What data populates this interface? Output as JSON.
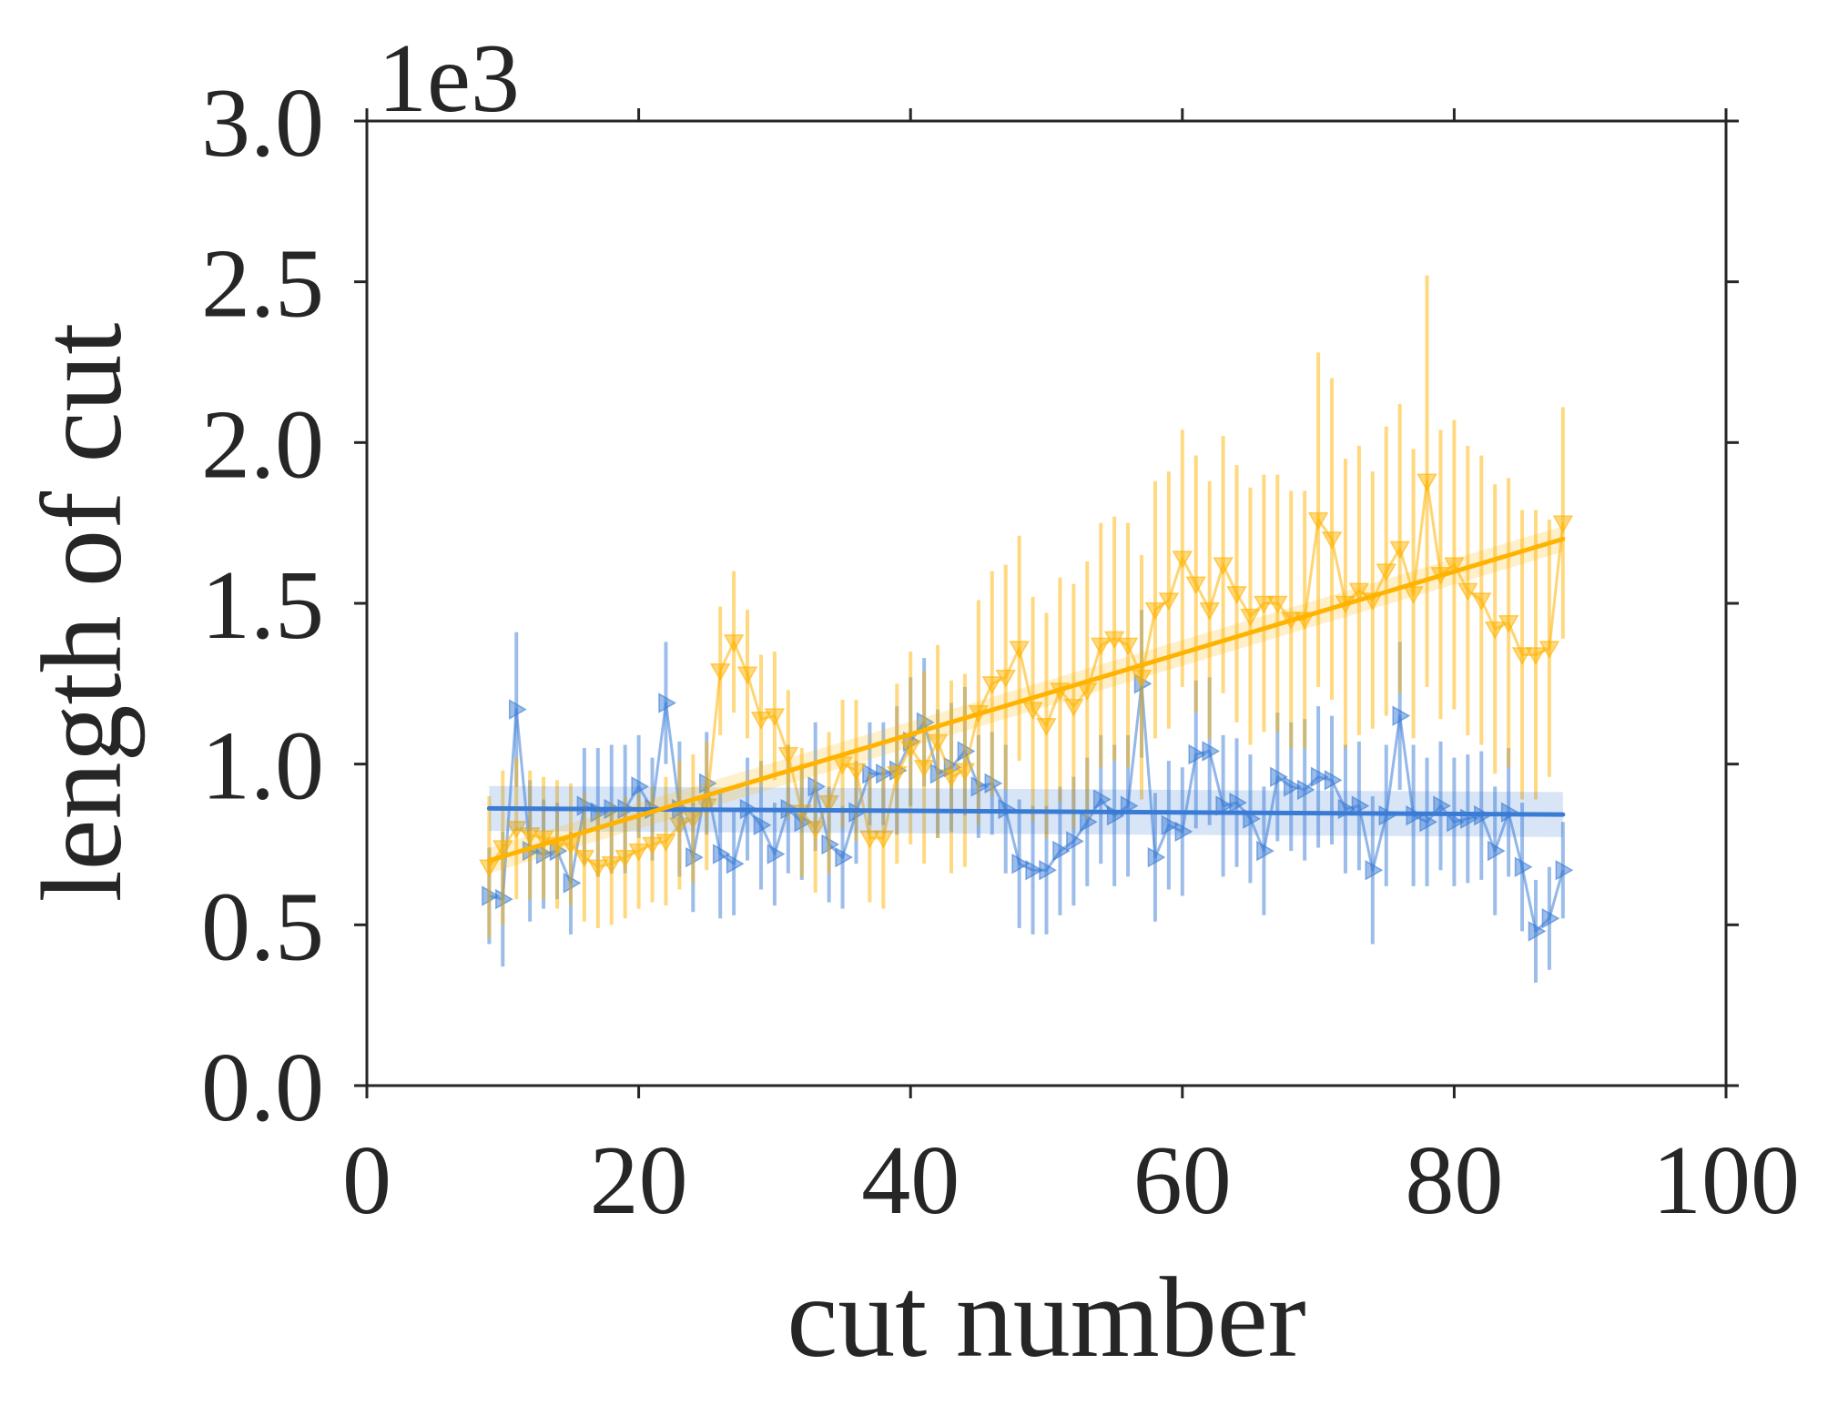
{
  "chart_data": {
    "type": "line",
    "title": "",
    "xlabel": "cut number",
    "ylabel": "length of cut",
    "y_multiplier_label": "1e3",
    "xlim": [
      0,
      100
    ],
    "ylim": [
      0,
      3.0
    ],
    "xticks": [
      0,
      20,
      40,
      60,
      80,
      100
    ],
    "xtick_labels": [
      "0",
      "20",
      "40",
      "60",
      "80",
      "100"
    ],
    "yticks": [
      0.0,
      0.5,
      1.0,
      1.5,
      2.0,
      2.5,
      3.0
    ],
    "ytick_labels": [
      "0.0",
      "0.5",
      "1.0",
      "1.5",
      "2.0",
      "2.5",
      "3.0"
    ],
    "grid": false,
    "legend": "none",
    "colors": {
      "series_a": "#3a7bd5",
      "series_b": "#ffb300",
      "axis": "#262626"
    },
    "series": [
      {
        "marker": "triangle-right",
        "color": "#3a7bd5",
        "x": [
          9,
          10,
          11,
          12,
          13,
          14,
          15,
          16,
          17,
          18,
          19,
          20,
          21,
          22,
          23,
          24,
          25,
          26,
          27,
          28,
          29,
          30,
          31,
          32,
          33,
          34,
          35,
          36,
          37,
          38,
          39,
          40,
          41,
          42,
          43,
          44,
          45,
          46,
          47,
          48,
          49,
          50,
          51,
          52,
          53,
          54,
          55,
          56,
          57,
          58,
          59,
          60,
          61,
          62,
          63,
          64,
          65,
          66,
          67,
          68,
          69,
          70,
          71,
          72,
          73,
          74,
          75,
          76,
          77,
          78,
          79,
          80,
          81,
          82,
          83,
          84,
          85,
          86,
          87,
          88
        ],
        "y": [
          0.59,
          0.58,
          1.17,
          0.73,
          0.72,
          0.73,
          0.63,
          0.87,
          0.85,
          0.86,
          0.86,
          0.93,
          0.86,
          1.19,
          0.86,
          0.71,
          0.94,
          0.72,
          0.69,
          0.86,
          0.81,
          0.72,
          0.86,
          0.82,
          0.93,
          0.75,
          0.71,
          0.85,
          0.97,
          0.97,
          0.98,
          1.07,
          1.13,
          0.97,
          0.99,
          1.04,
          0.93,
          0.94,
          0.86,
          0.69,
          0.67,
          0.67,
          0.73,
          0.76,
          0.82,
          0.89,
          0.84,
          0.87,
          1.25,
          0.71,
          0.81,
          0.79,
          1.03,
          1.04,
          0.87,
          0.88,
          0.83,
          0.73,
          0.96,
          0.93,
          0.92,
          0.96,
          0.95,
          0.86,
          0.87,
          0.67,
          0.84,
          1.15,
          0.84,
          0.82,
          0.87,
          0.82,
          0.83,
          0.84,
          0.73,
          0.85,
          0.68,
          0.48,
          0.52,
          0.67
        ],
        "err": [
          0.15,
          0.21,
          0.24,
          0.22,
          0.17,
          0.15,
          0.16,
          0.18,
          0.2,
          0.2,
          0.2,
          0.16,
          0.16,
          0.19,
          0.21,
          0.17,
          0.16,
          0.2,
          0.16,
          0.16,
          0.2,
          0.16,
          0.2,
          0.18,
          0.2,
          0.18,
          0.16,
          0.16,
          0.16,
          0.16,
          0.2,
          0.2,
          0.2,
          0.2,
          0.2,
          0.2,
          0.16,
          0.16,
          0.2,
          0.2,
          0.2,
          0.2,
          0.2,
          0.2,
          0.2,
          0.2,
          0.22,
          0.22,
          0.23,
          0.2,
          0.2,
          0.2,
          0.23,
          0.23,
          0.22,
          0.2,
          0.2,
          0.2,
          0.2,
          0.2,
          0.22,
          0.22,
          0.2,
          0.2,
          0.2,
          0.23,
          0.22,
          0.23,
          0.22,
          0.2,
          0.2,
          0.2,
          0.2,
          0.2,
          0.2,
          0.2,
          0.2,
          0.16,
          0.16,
          0.15
        ]
      },
      {
        "marker": "triangle-down",
        "color": "#ffb300",
        "x": [
          9,
          10,
          11,
          12,
          13,
          14,
          15,
          16,
          17,
          18,
          19,
          20,
          21,
          22,
          23,
          24,
          25,
          26,
          27,
          28,
          29,
          30,
          31,
          32,
          33,
          34,
          35,
          36,
          37,
          38,
          39,
          40,
          41,
          42,
          43,
          44,
          45,
          46,
          47,
          48,
          49,
          50,
          51,
          52,
          53,
          54,
          55,
          56,
          57,
          58,
          59,
          60,
          61,
          62,
          63,
          64,
          65,
          66,
          67,
          68,
          69,
          70,
          71,
          72,
          73,
          74,
          75,
          76,
          77,
          78,
          79,
          80,
          81,
          82,
          83,
          84,
          85,
          86,
          87,
          88
        ],
        "y": [
          0.68,
          0.74,
          0.8,
          0.78,
          0.77,
          0.75,
          0.75,
          0.71,
          0.68,
          0.69,
          0.71,
          0.73,
          0.75,
          0.76,
          0.81,
          0.83,
          0.87,
          1.29,
          1.38,
          1.28,
          1.14,
          1.15,
          1.03,
          0.85,
          0.8,
          0.88,
          1.0,
          0.98,
          0.77,
          0.77,
          0.97,
          1.05,
          0.99,
          1.07,
          0.96,
          0.98,
          1.16,
          1.25,
          1.27,
          1.36,
          1.17,
          1.12,
          1.23,
          1.18,
          1.23,
          1.37,
          1.39,
          1.37,
          1.27,
          1.48,
          1.51,
          1.64,
          1.56,
          1.48,
          1.62,
          1.53,
          1.46,
          1.5,
          1.5,
          1.45,
          1.45,
          1.76,
          1.7,
          1.5,
          1.54,
          1.51,
          1.6,
          1.67,
          1.53,
          1.88,
          1.59,
          1.62,
          1.54,
          1.51,
          1.42,
          1.44,
          1.34,
          1.34,
          1.36,
          1.75
        ],
        "err": [
          0.22,
          0.24,
          0.22,
          0.2,
          0.19,
          0.2,
          0.19,
          0.2,
          0.19,
          0.19,
          0.19,
          0.18,
          0.18,
          0.2,
          0.2,
          0.2,
          0.2,
          0.2,
          0.22,
          0.2,
          0.2,
          0.2,
          0.2,
          0.2,
          0.2,
          0.22,
          0.2,
          0.22,
          0.2,
          0.22,
          0.28,
          0.3,
          0.3,
          0.3,
          0.3,
          0.3,
          0.35,
          0.35,
          0.35,
          0.35,
          0.35,
          0.35,
          0.35,
          0.38,
          0.4,
          0.38,
          0.38,
          0.38,
          0.38,
          0.4,
          0.4,
          0.4,
          0.4,
          0.4,
          0.4,
          0.4,
          0.4,
          0.4,
          0.4,
          0.4,
          0.4,
          0.52,
          0.5,
          0.45,
          0.45,
          0.4,
          0.45,
          0.45,
          0.45,
          0.64,
          0.45,
          0.45,
          0.45,
          0.45,
          0.45,
          0.45,
          0.45,
          0.45,
          0.4,
          0.36
        ]
      }
    ],
    "fits": [
      {
        "color": "#3a7bd5",
        "x": [
          9,
          88
        ],
        "y": [
          0.862,
          0.843
        ],
        "band": 0.07
      },
      {
        "color": "#ffb300",
        "x": [
          9,
          88
        ],
        "y": [
          0.7,
          1.7
        ],
        "band": 0.04
      }
    ]
  }
}
